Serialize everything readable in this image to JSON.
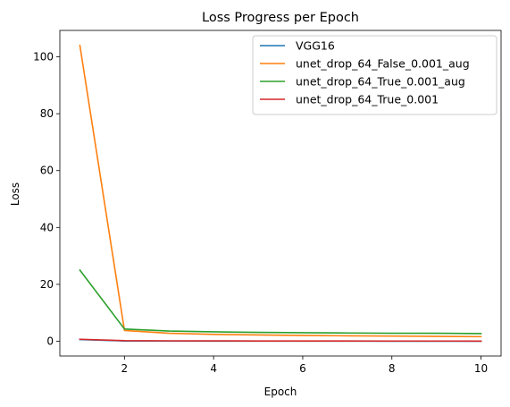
{
  "chart_data": {
    "type": "line",
    "title": "Loss Progress per Epoch",
    "xlabel": "Epoch",
    "ylabel": "Loss",
    "xlim": [
      0.55,
      10.45
    ],
    "ylim": [
      -5.2,
      109.3
    ],
    "xticks": [
      2,
      4,
      6,
      8,
      10
    ],
    "yticks": [
      0,
      20,
      40,
      60,
      80,
      100
    ],
    "grid": false,
    "legend_position": "top-right",
    "x": [
      1,
      2,
      3,
      4,
      5,
      6,
      7,
      8,
      9,
      10
    ],
    "series": [
      {
        "name": "VGG16",
        "color": "#1f77b4",
        "values": [
          0.6,
          0.1,
          0.07,
          0.05,
          0.04,
          0.03,
          0.03,
          0.02,
          0.02,
          0.02
        ]
      },
      {
        "name": "unet_drop_64_False_0.001_aug",
        "color": "#ff7f0e",
        "values": [
          104.0,
          3.8,
          2.8,
          2.4,
          2.2,
          2.0,
          1.9,
          1.8,
          1.7,
          1.6
        ]
      },
      {
        "name": "unet_drop_64_True_0.001_aug",
        "color": "#2ca02c",
        "values": [
          25.0,
          4.3,
          3.6,
          3.3,
          3.1,
          3.0,
          2.9,
          2.8,
          2.8,
          2.7
        ]
      },
      {
        "name": "unet_drop_64_True_0.001",
        "color": "#d62728",
        "values": [
          0.7,
          0.2,
          0.15,
          0.12,
          0.1,
          0.09,
          0.08,
          0.07,
          0.07,
          0.06
        ]
      }
    ]
  }
}
